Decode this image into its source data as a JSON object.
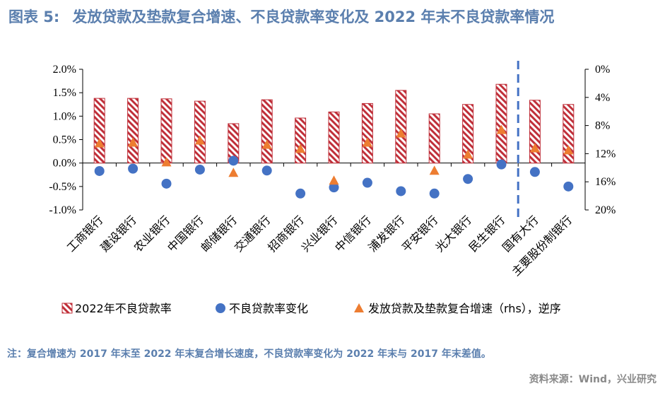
{
  "header": {
    "figure_label": "图表 5:",
    "title": "发放贷款及垫款复合增速、不良贷款率变化及 2022 年末不良贷款率情况"
  },
  "footer": {
    "note": "注：复合增速为 2017 年末至 2022 年末复合增长速度，不良贷款率变化为 2022 年末与 2017 年末差值。",
    "source": "资料来源：Wind，兴业研究"
  },
  "chart_data": {
    "type": "bar",
    "categories": [
      "工商银行",
      "建设银行",
      "农业银行",
      "中国银行",
      "邮储银行",
      "交通银行",
      "招商银行",
      "兴业银行",
      "中信银行",
      "浦发银行",
      "平安银行",
      "光大银行",
      "民生银行",
      "国有大行",
      "主要股份制银行"
    ],
    "left_axis": {
      "ylim": [
        -1.0,
        2.0
      ],
      "ticks": [
        2.0,
        1.5,
        1.0,
        0.5,
        0.0,
        -0.5,
        -1.0
      ],
      "tick_labels": [
        "2.0%",
        "1.5%",
        "1.0%",
        "0.5%",
        "0.0%",
        "-0.5%",
        "-1.0%"
      ]
    },
    "right_axis": {
      "reversed": true,
      "ylim": [
        0,
        20
      ],
      "ticks": [
        0,
        4,
        8,
        12,
        16,
        20
      ],
      "tick_labels": [
        "0%",
        "4%",
        "8%",
        "12%",
        "16%",
        "20%"
      ]
    },
    "series": [
      {
        "name": "2022年不良贷款率",
        "kind": "bar",
        "axis": "left",
        "color": "#c0303a",
        "values": [
          1.38,
          1.38,
          1.37,
          1.32,
          0.84,
          1.35,
          0.96,
          1.09,
          1.27,
          1.55,
          1.05,
          1.25,
          1.68,
          1.34,
          1.25
        ]
      },
      {
        "name": "不良贷款率变化",
        "kind": "scatter-circle",
        "axis": "left",
        "color": "#4472c4",
        "values": [
          -0.17,
          -0.12,
          -0.44,
          -0.14,
          0.05,
          -0.16,
          -0.65,
          -0.52,
          -0.42,
          -0.6,
          -0.65,
          -0.34,
          -0.03,
          -0.19,
          -0.5
        ]
      },
      {
        "name": "发放贷款及垫款复合增速（rhs），逆序",
        "kind": "scatter-triangle",
        "axis": "right",
        "color": "#ed7d31",
        "values": [
          10.5,
          10.4,
          13.2,
          10.1,
          14.7,
          10.7,
          11.3,
          15.8,
          10.4,
          9.1,
          14.4,
          12.1,
          8.6,
          11.2,
          11.5
        ]
      }
    ],
    "divider_after_index": 12,
    "legend_placement": "bottom"
  }
}
